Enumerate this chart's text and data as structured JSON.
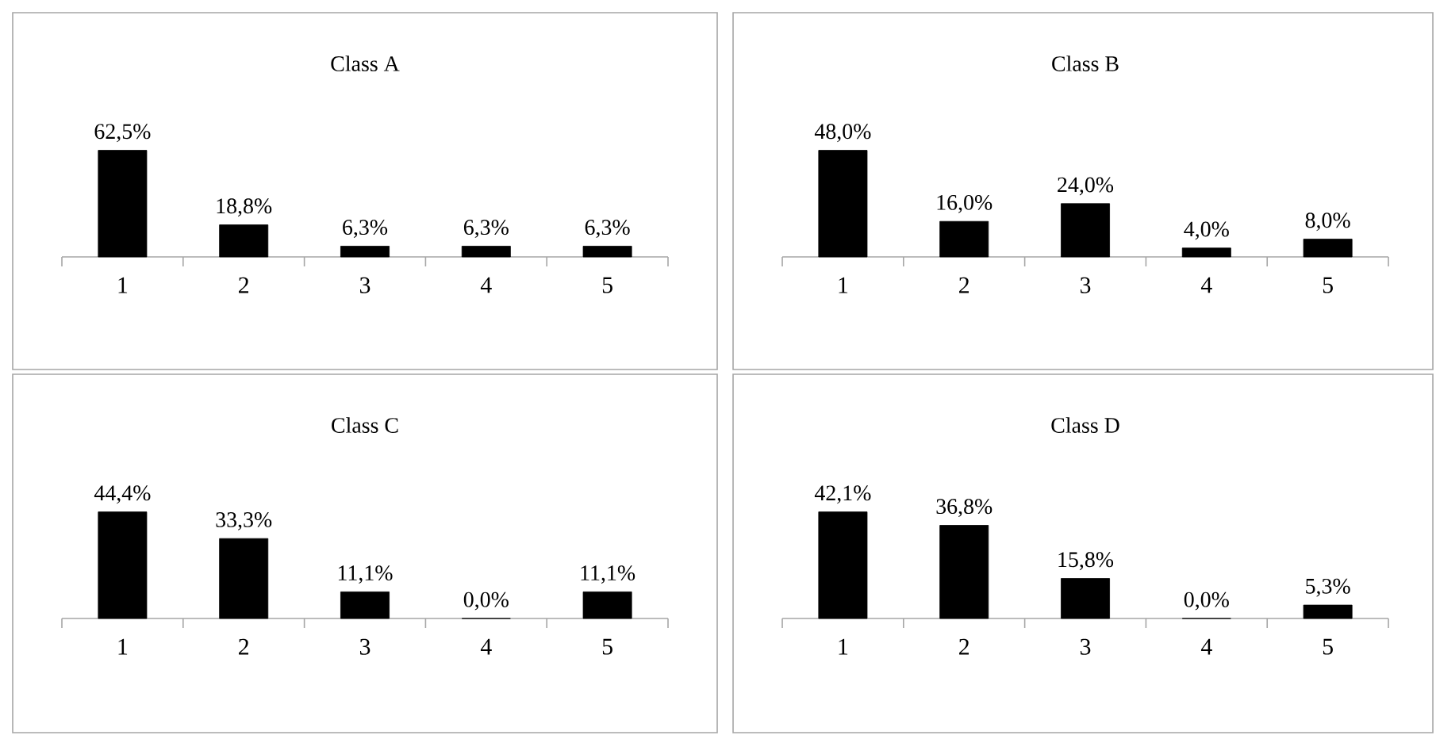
{
  "chart_data": [
    {
      "type": "bar",
      "title": "Class A",
      "categories": [
        "1",
        "2",
        "3",
        "4",
        "5"
      ],
      "values": [
        62.5,
        18.8,
        6.3,
        6.3,
        6.3
      ],
      "value_labels": [
        "62,5%",
        "18,8%",
        "6,3%",
        "6,3%",
        "6,3%"
      ],
      "color": "#000000"
    },
    {
      "type": "bar",
      "title": "Class B",
      "categories": [
        "1",
        "2",
        "3",
        "4",
        "5"
      ],
      "values": [
        48.0,
        16.0,
        24.0,
        4.0,
        8.0
      ],
      "value_labels": [
        "48,0%",
        "16,0%",
        "24,0%",
        "4,0%",
        "8,0%"
      ],
      "color": "#000000"
    },
    {
      "type": "bar",
      "title": "Class C",
      "categories": [
        "1",
        "2",
        "3",
        "4",
        "5"
      ],
      "values": [
        44.4,
        33.3,
        11.1,
        0.0,
        11.1
      ],
      "value_labels": [
        "44,4%",
        "33,3%",
        "11,1%",
        "0,0%",
        "11,1%"
      ],
      "color": "#000000"
    },
    {
      "type": "bar",
      "title": "Class D",
      "categories": [
        "1",
        "2",
        "3",
        "4",
        "5"
      ],
      "values": [
        42.1,
        36.8,
        15.8,
        0.0,
        5.3
      ],
      "value_labels": [
        "42,1%",
        "36,8%",
        "15,8%",
        "0,0%",
        "5,3%"
      ],
      "color": "#000000"
    }
  ]
}
